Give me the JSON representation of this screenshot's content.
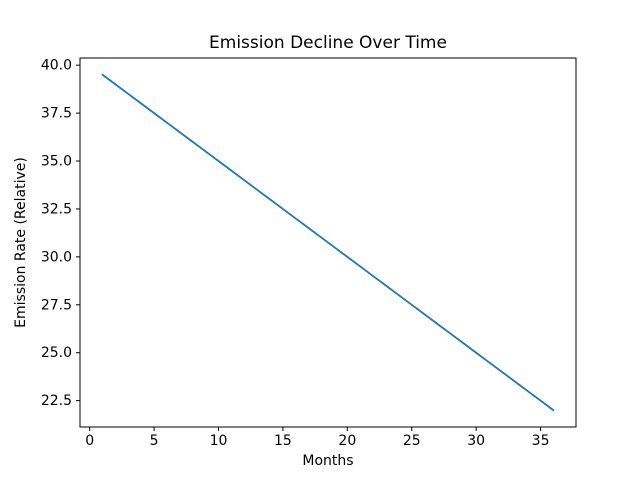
{
  "page": {
    "background_color": "#ffffff"
  },
  "chart_data": {
    "type": "line",
    "title": "Emission Decline Over Time",
    "xlabel": "Months",
    "ylabel": "Emission Rate (Relative)",
    "x": [
      1,
      2,
      3,
      4,
      5,
      6,
      7,
      8,
      9,
      10,
      11,
      12,
      13,
      14,
      15,
      16,
      17,
      18,
      19,
      20,
      21,
      22,
      23,
      24,
      25,
      26,
      27,
      28,
      29,
      30,
      31,
      32,
      33,
      34,
      35,
      36
    ],
    "series": [
      {
        "name": "Emission Rate",
        "color": "#1f77b4",
        "values": [
          39.5,
          39.0,
          38.5,
          38.0,
          37.5,
          37.0,
          36.5,
          36.0,
          35.5,
          35.0,
          34.5,
          34.0,
          33.5,
          33.0,
          32.5,
          32.0,
          31.5,
          31.0,
          30.5,
          30.0,
          29.5,
          29.0,
          28.5,
          28.0,
          27.5,
          27.0,
          26.5,
          26.0,
          25.5,
          25.0,
          24.5,
          24.0,
          23.5,
          23.0,
          22.5,
          22.0
        ]
      }
    ],
    "xlim": [
      -0.75,
      37.75
    ],
    "ylim": [
      21.125,
      40.375
    ],
    "xticks": [
      "0",
      "5",
      "10",
      "15",
      "20",
      "25",
      "30",
      "35"
    ],
    "yticks": [
      "22.5",
      "25.0",
      "27.5",
      "30.0",
      "32.5",
      "35.0",
      "37.5",
      "40.0"
    ],
    "grid": false,
    "legend": "none",
    "axes_color": "#000000",
    "line_width": 1.8
  }
}
